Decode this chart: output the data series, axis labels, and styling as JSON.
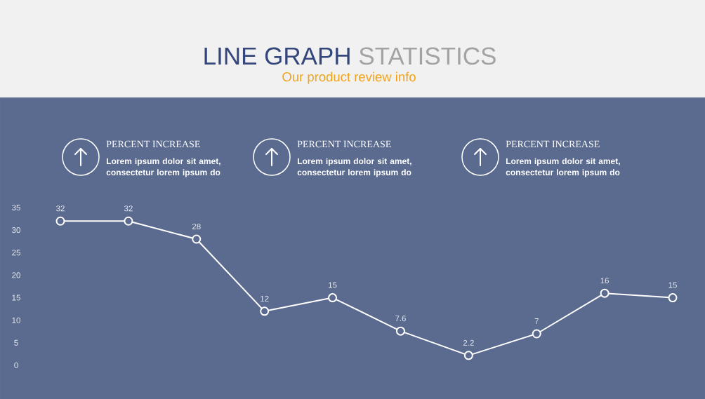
{
  "chart_data": {
    "type": "line",
    "title": "LINE GRAPH STATISTICS",
    "subtitle": "Our product review info",
    "categories": [
      null,
      null,
      null,
      null,
      null,
      null,
      null,
      null,
      null,
      null
    ],
    "values": [
      32,
      32,
      28,
      12,
      15,
      7.6,
      2.2,
      7,
      16,
      15
    ],
    "color": "#ffffff",
    "ylim": [
      0,
      35
    ],
    "yticks": [
      0,
      5,
      10,
      15,
      20,
      25,
      30,
      35
    ],
    "marker": "circle",
    "line_style": "solid",
    "data_labels": true,
    "tick_labels": "y",
    "annotations": [
      "PERCENT INCREASE",
      "Lorem ipsum dolor sit amet, consectetur lorem ipsum do",
      "PERCENT INCREASE",
      "Lorem ipsum dolor sit amet, consectetur lorem ipsum do",
      "PERCENT INCREASE",
      "Lorem ipsum dolor sit amet, consectetur lorem ipsum do"
    ]
  }
}
